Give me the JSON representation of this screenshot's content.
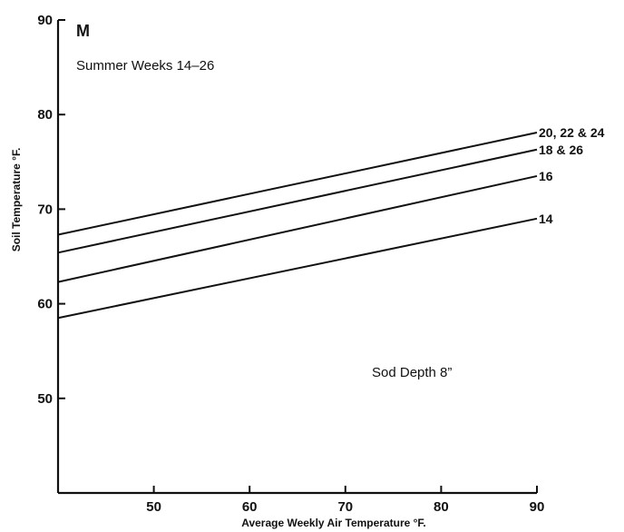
{
  "chart_data": {
    "type": "line",
    "title": "M",
    "subtitle": "Summer Weeks 14–26",
    "annotation": "Sod Depth 8”",
    "xlabel": "Average Weekly Air Temperature °F.",
    "ylabel": "Soil Temperature °F.",
    "xlim": [
      40,
      90
    ],
    "ylim": [
      40,
      90
    ],
    "xticks": [
      50,
      60,
      70,
      80,
      90
    ],
    "yticks": [
      50,
      60,
      70,
      80,
      90
    ],
    "grid": false,
    "series": [
      {
        "name": "20, 22 & 24",
        "x": [
          40,
          90
        ],
        "y": [
          67.3,
          78.1
        ]
      },
      {
        "name": "18 & 26",
        "x": [
          40,
          90
        ],
        "y": [
          65.4,
          76.3
        ]
      },
      {
        "name": "16",
        "x": [
          40,
          90
        ],
        "y": [
          62.3,
          73.5
        ]
      },
      {
        "name": "14",
        "x": [
          40,
          90
        ],
        "y": [
          58.5,
          69.0
        ]
      }
    ]
  }
}
